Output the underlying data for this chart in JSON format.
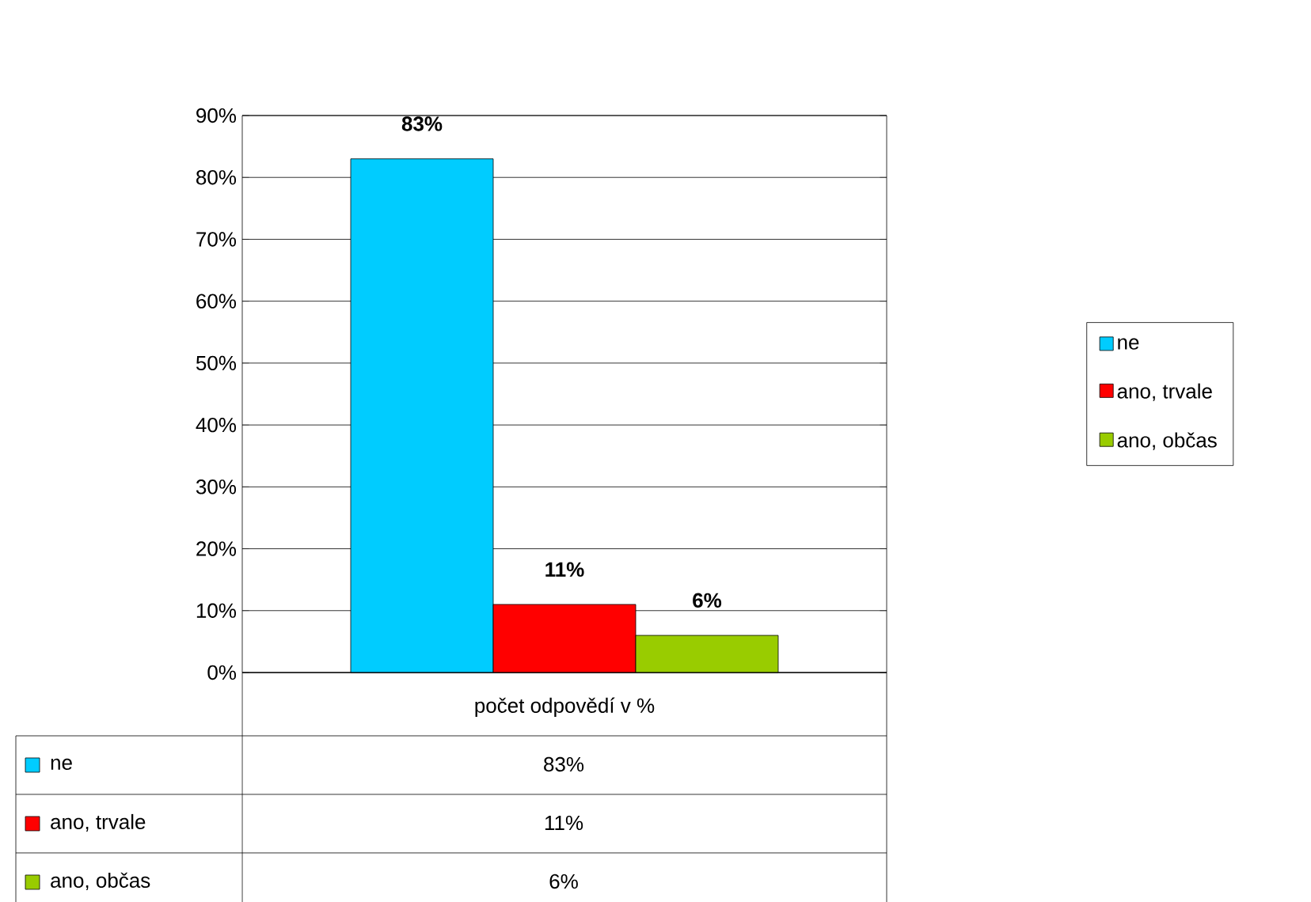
{
  "chart_data": {
    "type": "bar",
    "categories": [
      "počet odpovědí v %"
    ],
    "series": [
      {
        "name": "ne",
        "color": "#00ccff",
        "values": [
          83
        ],
        "value_labels": [
          "83%"
        ]
      },
      {
        "name": "ano, trvale",
        "color": "#ff0000",
        "values": [
          11
        ],
        "value_labels": [
          "11%"
        ]
      },
      {
        "name": "ano, občas",
        "color": "#99cc00",
        "values": [
          6
        ],
        "value_labels": [
          "6%"
        ]
      }
    ],
    "ylim": [
      0,
      90
    ],
    "yticks": [
      {
        "value": 0,
        "label": "0%"
      },
      {
        "value": 10,
        "label": "10%"
      },
      {
        "value": 20,
        "label": "20%"
      },
      {
        "value": 30,
        "label": "30%"
      },
      {
        "value": 40,
        "label": "40%"
      },
      {
        "value": 50,
        "label": "50%"
      },
      {
        "value": 60,
        "label": "60%"
      },
      {
        "value": 70,
        "label": "70%"
      },
      {
        "value": 80,
        "label": "80%"
      },
      {
        "value": 90,
        "label": "90%"
      }
    ],
    "grid": "y",
    "legend": "right"
  }
}
